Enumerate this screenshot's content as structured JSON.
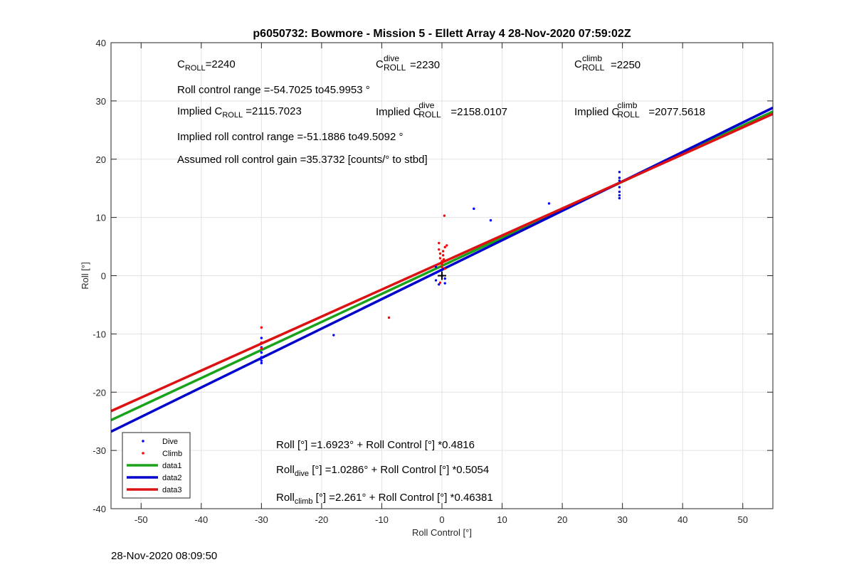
{
  "chart_data": {
    "type": "scatter",
    "title": "p6050732: Bowmore - Mission 5 - Ellett Array 4 28-Nov-2020 07:59:02Z",
    "xlabel": "Roll Control [°]",
    "ylabel": "Roll [°]",
    "xlim": [
      -55,
      55
    ],
    "ylim": [
      -40,
      40
    ],
    "xticks": [
      -50,
      -40,
      -30,
      -20,
      -10,
      0,
      10,
      20,
      30,
      40,
      50
    ],
    "yticks": [
      -40,
      -30,
      -20,
      -10,
      0,
      10,
      20,
      30,
      40
    ],
    "grid": true,
    "legend_position": "bottom-left",
    "series": [
      {
        "name": "Dive",
        "kind": "scatter",
        "color": "#0000ff",
        "points": [
          [
            -30,
            -10.7
          ],
          [
            -30,
            -11.5
          ],
          [
            -30,
            -12.3
          ],
          [
            -30,
            -13.2
          ],
          [
            -30,
            -14.0
          ],
          [
            -30,
            -14.6
          ],
          [
            -30,
            -15.0
          ],
          [
            -18,
            -10.2
          ],
          [
            -1,
            1.5
          ],
          [
            -1,
            0.5
          ],
          [
            -1,
            -0.8
          ],
          [
            -0.5,
            -1.5
          ],
          [
            0,
            1.0
          ],
          [
            0,
            0.0
          ],
          [
            0.5,
            -0.5
          ],
          [
            0.5,
            -1.3
          ],
          [
            5.3,
            11.5
          ],
          [
            8.1,
            9.5
          ],
          [
            17.8,
            12.4
          ],
          [
            29.5,
            17.8
          ],
          [
            29.5,
            16.8
          ],
          [
            29.5,
            16.3
          ],
          [
            29.5,
            15.2
          ],
          [
            29.5,
            14.4
          ],
          [
            29.5,
            13.8
          ],
          [
            29.5,
            13.3
          ]
        ]
      },
      {
        "name": "Climb",
        "kind": "scatter",
        "color": "#ff0000",
        "points": [
          [
            -30,
            -8.9
          ],
          [
            -30,
            -11.5
          ],
          [
            -30,
            -12.5
          ],
          [
            -8.8,
            -7.2
          ],
          [
            -0.5,
            5.6
          ],
          [
            -0.5,
            4.5
          ],
          [
            -0.3,
            3.8
          ],
          [
            -0.3,
            3.0
          ],
          [
            0,
            2.5
          ],
          [
            0,
            2.0
          ],
          [
            0,
            1.5
          ],
          [
            0.2,
            4.2
          ],
          [
            0.2,
            3.5
          ],
          [
            0.3,
            2.8
          ],
          [
            0.4,
            10.3
          ],
          [
            0.5,
            4.9
          ],
          [
            0.5,
            1.2
          ],
          [
            0.8,
            5.2
          ],
          [
            -0.3,
            -1.2
          ]
        ]
      },
      {
        "name": "data1",
        "kind": "line",
        "color": "#1aa31a",
        "intercept": 1.6923,
        "slope": 0.4816
      },
      {
        "name": "data2",
        "kind": "line",
        "color": "#0000cc",
        "intercept": 1.0286,
        "slope": 0.5054
      },
      {
        "name": "data3",
        "kind": "line",
        "color": "#dd1111",
        "intercept": 2.261,
        "slope": 0.46381
      }
    ],
    "marker": {
      "x": 0,
      "y": 0,
      "symbol": "+"
    }
  },
  "annotations": {
    "c_roll": {
      "base": "C",
      "sub": "ROLL",
      "value": "=2240"
    },
    "c_roll_dive": {
      "base": "C",
      "sup": "dive",
      "sub": "ROLL",
      "value": "=2230"
    },
    "c_roll_climb": {
      "base": "C",
      "sup": "climb",
      "sub": "ROLL",
      "value": "=2250"
    },
    "roll_control_range": "Roll control range =-54.7025 to45.9953 °",
    "implied_c_roll": {
      "prefix": "Implied C",
      "sub": "ROLL",
      "value": " =2115.7023"
    },
    "implied_c_roll_dive": {
      "prefix": "Implied C",
      "sup": "dive",
      "sub": "ROLL",
      "value": "=2158.0107"
    },
    "implied_c_roll_climb": {
      "prefix": "Implied C",
      "sup": "climb",
      "sub": "ROLL",
      "value": "=2077.5618"
    },
    "implied_roll_range": "Implied roll control range =-51.1886 to49.5092 °",
    "assumed_gain": "Assumed roll control gain =35.3732 [counts/° to stbd]",
    "fit_all": "Roll [°] =1.6923° + Roll Control [°] *0.4816",
    "fit_dive": {
      "base": "Roll",
      "sub": "dive",
      "value": " [°] =1.0286° + Roll Control [°] *0.5054"
    },
    "fit_climb": {
      "base": "Roll",
      "sub": "climb",
      "value": " [°] =2.261° + Roll Control [°] *0.46381"
    }
  },
  "footer_timestamp": "28-Nov-2020 08:09:50"
}
